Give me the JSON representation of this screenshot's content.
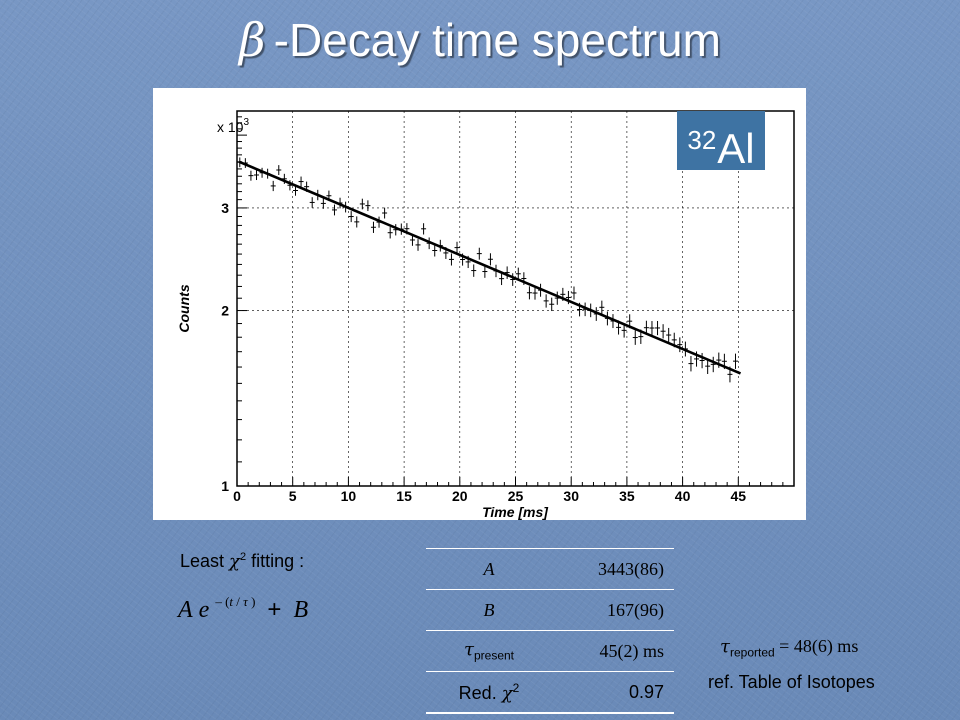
{
  "title": {
    "symbol": "β",
    "text": "-Decay time spectrum"
  },
  "isotope": {
    "mass": "32",
    "element": "Al"
  },
  "fit": {
    "label_pre": "Least ",
    "label_chi": "χ",
    "label_sup": "2",
    "label_post": " fitting :",
    "formula": {
      "a": "A",
      "e": "e",
      "exp_sign": "– (",
      "exp_t": "t",
      "exp_slash": " / ",
      "exp_tau": "τ",
      "exp_close": " )",
      "plus": "+",
      "b": "B"
    }
  },
  "params": [
    {
      "key": "A",
      "value": "3443(86)"
    },
    {
      "key": "B",
      "value": "167(96)"
    },
    {
      "key_greek": "τ",
      "key_sub": "present",
      "value": "45(2) ms"
    },
    {
      "key_pre": "Red. ",
      "key_greek": "χ",
      "key_sup": "2",
      "value": "0.97"
    }
  ],
  "reported": {
    "greek": "τ",
    "sub": "reported",
    "text": " = 48(6) ms"
  },
  "reference": "ref. Table of Isotopes",
  "chart_data": {
    "type": "scatter",
    "xlabel": "Time [ms]",
    "ylabel": "Counts",
    "yscale_label_pre": "x 10",
    "yscale_label_exp": "3",
    "xlim": [
      0,
      50
    ],
    "ylim": [
      1.0,
      4.4
    ],
    "yscale": "log",
    "grid": true,
    "x_ticks": [
      0,
      5,
      10,
      15,
      20,
      25,
      30,
      35,
      40,
      45
    ],
    "y_ticks": [
      1,
      2,
      3
    ],
    "series": [
      {
        "kind": "data-with-error-bars",
        "x_start": 0.25,
        "x_step": 0.5,
        "count": 90,
        "error": 0.06
      },
      {
        "kind": "fit-line",
        "x": [
          0.2,
          45.2
        ],
        "y": [
          3.6,
          1.56
        ]
      }
    ]
  }
}
